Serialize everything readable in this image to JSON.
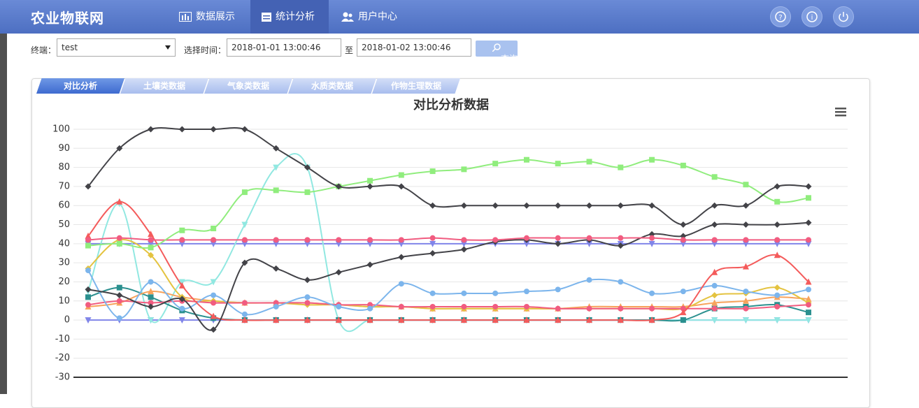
{
  "header": {
    "logo": "农业物联网",
    "nav": [
      "数据展示",
      "统计分析",
      "用户中心"
    ]
  },
  "toolbar": {
    "terminal_label": "终端：",
    "terminal_value": "test",
    "time_label": "选择时间：",
    "start": "2018-01-01 13:00:46",
    "to": "至",
    "end": "2018-01-02 13:00:46",
    "button": "查询"
  },
  "tabs": [
    "对比分析",
    "土壤类数据",
    "气象类数据",
    "水质类数据",
    "作物生理数据"
  ],
  "chart_data": {
    "type": "line",
    "title": "对比分析数据",
    "smooth": true,
    "grid": true,
    "categories": [
      null,
      null,
      null,
      null,
      null,
      null,
      null,
      null,
      null,
      null,
      null,
      null,
      null,
      null,
      null,
      null,
      null,
      null,
      null,
      null,
      null,
      null,
      null,
      null
    ],
    "ylim": [
      -30,
      100
    ],
    "yticks": [
      -30,
      -20,
      -10,
      0,
      10,
      20,
      30,
      40,
      50,
      60,
      70,
      80,
      90,
      100
    ],
    "series": [
      {
        "color": "#8085e9",
        "marker": "triangle-down",
        "values": [
          0,
          0,
          0,
          0,
          0,
          0,
          0,
          0,
          0,
          0,
          0,
          0,
          0,
          0,
          0,
          0,
          0,
          0,
          0,
          0,
          0,
          0,
          0,
          0
        ]
      },
      {
        "color": "#8085e9",
        "marker": "triangle-down",
        "values": [
          40,
          40,
          40,
          40,
          40,
          40,
          40,
          40,
          40,
          40,
          40,
          40,
          40,
          40,
          40,
          40,
          40,
          40,
          40,
          40,
          40,
          40,
          40,
          40
        ]
      },
      {
        "color": "#91e8e1",
        "marker": "triangle-down",
        "values": [
          15,
          61,
          0,
          20,
          20,
          50,
          80,
          80,
          0,
          0,
          0,
          0,
          0,
          0,
          0,
          0,
          0,
          0,
          0,
          0,
          0,
          0,
          0,
          0
        ]
      },
      {
        "color": "#2b908f",
        "marker": "square",
        "values": [
          12,
          17,
          12,
          5,
          1,
          0,
          0,
          0,
          0,
          0,
          0,
          0,
          0,
          0,
          0,
          0,
          0,
          0,
          0,
          0,
          6,
          7,
          8,
          4
        ]
      },
      {
        "color": "#f7a35c",
        "marker": "triangle",
        "values": [
          7,
          9,
          15,
          12,
          10,
          9,
          9,
          9,
          8,
          7,
          7,
          6,
          6,
          6,
          6,
          6,
          7,
          7,
          7,
          7,
          9,
          10,
          12,
          11
        ]
      },
      {
        "color": "#e4c340",
        "marker": "diamond",
        "values": [
          27,
          42,
          34,
          12,
          10,
          9,
          9,
          8,
          8,
          7,
          7,
          6,
          6,
          6,
          6,
          6,
          6,
          6,
          6,
          6,
          13,
          14,
          17,
          9
        ]
      },
      {
        "color": "#f15c80",
        "marker": "circle",
        "values": [
          8,
          10,
          9,
          10,
          9,
          9,
          9,
          9,
          8,
          8,
          7,
          7,
          7,
          7,
          7,
          6,
          6,
          6,
          6,
          6,
          6,
          6,
          7,
          8
        ]
      },
      {
        "color": "#7cb5ec",
        "marker": "circle",
        "values": [
          26,
          1,
          20,
          6,
          13,
          3,
          7,
          12,
          7,
          6,
          19,
          14,
          14,
          14,
          15,
          16,
          21,
          20,
          14,
          15,
          18,
          15,
          13,
          16
        ]
      },
      {
        "color": "#f45b5b",
        "marker": "triangle",
        "values": [
          44,
          62,
          45,
          18,
          2,
          0,
          0,
          0,
          0,
          0,
          0,
          0,
          0,
          0,
          0,
          0,
          0,
          0,
          0,
          4,
          25,
          28,
          34,
          20
        ]
      },
      {
        "color": "#434348",
        "marker": "diamond",
        "values": [
          16,
          13,
          7,
          11,
          -5,
          30,
          27,
          21,
          25,
          29,
          33,
          35,
          37,
          41,
          42,
          40,
          42,
          39,
          45,
          44,
          50,
          50,
          50,
          51
        ]
      },
      {
        "color": "#f15c80",
        "marker": "circle",
        "values": [
          42,
          43,
          42,
          42,
          42,
          42,
          42,
          42,
          42,
          42,
          42,
          43,
          42,
          42,
          43,
          43,
          43,
          43,
          43,
          42,
          42,
          42,
          42,
          42
        ]
      },
      {
        "color": "#90ed7d",
        "marker": "square",
        "values": [
          39,
          40,
          38,
          47,
          48,
          67,
          68,
          67,
          70,
          73,
          76,
          78,
          79,
          82,
          84,
          82,
          83,
          80,
          84,
          81,
          75,
          71,
          62,
          64
        ]
      },
      {
        "color": "#434348",
        "marker": "diamond",
        "values": [
          70,
          90,
          100,
          100,
          100,
          100,
          90,
          80,
          70,
          70,
          70,
          60,
          60,
          60,
          60,
          60,
          60,
          60,
          60,
          50,
          60,
          60,
          70,
          70
        ]
      }
    ]
  }
}
